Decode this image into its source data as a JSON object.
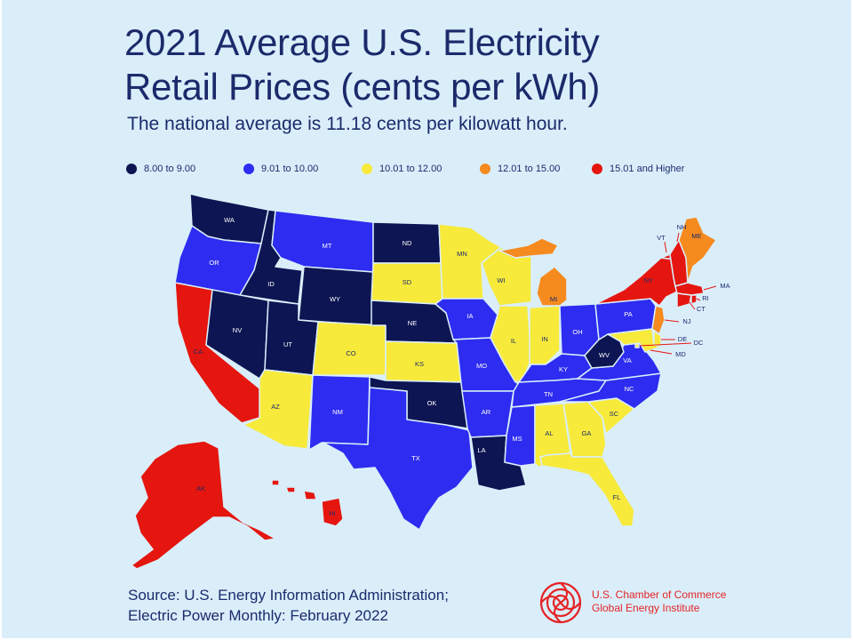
{
  "title_line1": "2021 Average U.S. Electricity",
  "title_line2": "Retail Prices (cents per kWh)",
  "subtitle": "The national average is 11.18 cents per kilowatt hour.",
  "legend": [
    {
      "label": "8.00 to 9.00",
      "color": "#0d1552"
    },
    {
      "label": "9.01 to 10.00",
      "color": "#2d2cf0"
    },
    {
      "label": "10.01 to 12.00",
      "color": "#f7ea3b"
    },
    {
      "label": "12.01 to 15.00",
      "color": "#f58a1f"
    },
    {
      "label": "15.01 and Higher",
      "color": "#e5160f"
    }
  ],
  "states": [
    {
      "abbr": "WA",
      "category": 0
    },
    {
      "abbr": "OR",
      "category": 1
    },
    {
      "abbr": "CA",
      "category": 4
    },
    {
      "abbr": "ID",
      "category": 0
    },
    {
      "abbr": "NV",
      "category": 0
    },
    {
      "abbr": "MT",
      "category": 1
    },
    {
      "abbr": "WY",
      "category": 0
    },
    {
      "abbr": "UT",
      "category": 0
    },
    {
      "abbr": "AZ",
      "category": 2
    },
    {
      "abbr": "CO",
      "category": 2
    },
    {
      "abbr": "NM",
      "category": 1
    },
    {
      "abbr": "ND",
      "category": 0
    },
    {
      "abbr": "SD",
      "category": 2
    },
    {
      "abbr": "NE",
      "category": 0
    },
    {
      "abbr": "KS",
      "category": 2
    },
    {
      "abbr": "OK",
      "category": 0
    },
    {
      "abbr": "TX",
      "category": 1
    },
    {
      "abbr": "MN",
      "category": 2
    },
    {
      "abbr": "IA",
      "category": 1
    },
    {
      "abbr": "MO",
      "category": 1
    },
    {
      "abbr": "AR",
      "category": 1
    },
    {
      "abbr": "LA",
      "category": 0
    },
    {
      "abbr": "WI",
      "category": 2
    },
    {
      "abbr": "IL",
      "category": 2
    },
    {
      "abbr": "MI",
      "category": 3
    },
    {
      "abbr": "IN",
      "category": 2
    },
    {
      "abbr": "OH",
      "category": 1
    },
    {
      "abbr": "KY",
      "category": 1
    },
    {
      "abbr": "TN",
      "category": 1
    },
    {
      "abbr": "MS",
      "category": 1
    },
    {
      "abbr": "AL",
      "category": 2
    },
    {
      "abbr": "GA",
      "category": 2
    },
    {
      "abbr": "FL",
      "category": 2
    },
    {
      "abbr": "SC",
      "category": 2
    },
    {
      "abbr": "NC",
      "category": 1
    },
    {
      "abbr": "VA",
      "category": 1
    },
    {
      "abbr": "WV",
      "category": 0
    },
    {
      "abbr": "PA",
      "category": 1
    },
    {
      "abbr": "NY",
      "category": 4
    },
    {
      "abbr": "VT",
      "category": 4
    },
    {
      "abbr": "NH",
      "category": 4
    },
    {
      "abbr": "ME",
      "category": 3
    },
    {
      "abbr": "MA",
      "category": 4
    },
    {
      "abbr": "RI",
      "category": 4
    },
    {
      "abbr": "CT",
      "category": 4
    },
    {
      "abbr": "NJ",
      "category": 3
    },
    {
      "abbr": "DE",
      "category": 2
    },
    {
      "abbr": "MD",
      "category": 2
    },
    {
      "abbr": "DC",
      "category": 2
    },
    {
      "abbr": "AK",
      "category": 4
    },
    {
      "abbr": "HI",
      "category": 4
    }
  ],
  "source_line1": "Source: U.S. Energy Information Administration;",
  "source_line2": "Electric Power Monthly: February 2022",
  "logo_line1": "U.S. Chamber of Commerce",
  "logo_line2": "Global Energy Institute"
}
